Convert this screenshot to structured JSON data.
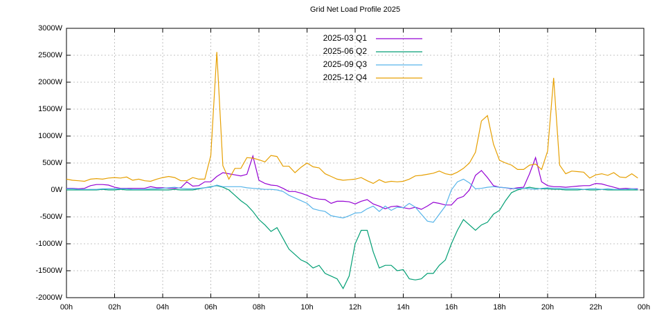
{
  "chart_data": {
    "type": "line",
    "title": "Grid Net Load Profile 2025",
    "x": [
      0,
      0.25,
      0.5,
      0.75,
      1,
      1.25,
      1.5,
      1.75,
      2,
      2.25,
      2.5,
      2.75,
      3,
      3.25,
      3.5,
      3.75,
      4,
      4.25,
      4.5,
      4.75,
      5,
      5.25,
      5.5,
      5.75,
      6,
      6.25,
      6.5,
      6.75,
      7,
      7.25,
      7.5,
      7.75,
      8,
      8.25,
      8.5,
      8.75,
      9,
      9.25,
      9.5,
      9.75,
      10,
      10.25,
      10.5,
      10.75,
      11,
      11.25,
      11.5,
      11.75,
      12,
      12.25,
      12.5,
      12.75,
      13,
      13.25,
      13.5,
      13.75,
      14,
      14.25,
      14.5,
      14.75,
      15,
      15.25,
      15.5,
      15.75,
      16,
      16.25,
      16.5,
      16.75,
      17,
      17.25,
      17.5,
      17.75,
      18,
      18.25,
      18.5,
      18.75,
      19,
      19.25,
      19.5,
      19.75,
      20,
      20.25,
      20.5,
      20.75,
      21,
      21.25,
      21.5,
      21.75,
      22,
      22.25,
      22.5,
      22.75,
      23,
      23.25,
      23.5,
      23.75
    ],
    "series": [
      {
        "name": "2025-03 Q1",
        "color": "#9400d3",
        "values": [
          30,
          30,
          20,
          30,
          80,
          100,
          100,
          90,
          50,
          30,
          30,
          30,
          30,
          30,
          60,
          40,
          40,
          30,
          30,
          40,
          150,
          70,
          80,
          150,
          150,
          250,
          320,
          300,
          280,
          260,
          290,
          630,
          180,
          120,
          90,
          80,
          30,
          -30,
          -30,
          -60,
          -100,
          -150,
          -170,
          -180,
          -250,
          -210,
          -210,
          -220,
          -260,
          -210,
          -180,
          -260,
          -300,
          -350,
          -310,
          -300,
          -330,
          -350,
          -320,
          -360,
          -300,
          -230,
          -250,
          -280,
          -280,
          -160,
          -120,
          0,
          270,
          360,
          230,
          80,
          50,
          40,
          20,
          40,
          50,
          300,
          600,
          150,
          80,
          60,
          60,
          50,
          60,
          70,
          80,
          80,
          120,
          110,
          80,
          50,
          20,
          30,
          20,
          20
        ]
      },
      {
        "name": "2025-06 Q2",
        "color": "#009e73",
        "values": [
          0,
          0,
          0,
          0,
          0,
          0,
          10,
          0,
          0,
          10,
          0,
          0,
          0,
          0,
          0,
          0,
          0,
          0,
          10,
          0,
          0,
          0,
          20,
          40,
          60,
          80,
          50,
          0,
          -100,
          -200,
          -280,
          -400,
          -550,
          -650,
          -770,
          -700,
          -900,
          -1100,
          -1200,
          -1300,
          -1350,
          -1450,
          -1400,
          -1550,
          -1600,
          -1650,
          -1830,
          -1600,
          -1000,
          -750,
          -750,
          -1150,
          -1450,
          -1400,
          -1400,
          -1500,
          -1480,
          -1650,
          -1670,
          -1650,
          -1550,
          -1550,
          -1400,
          -1300,
          -1000,
          -750,
          -550,
          -650,
          -750,
          -650,
          -600,
          -450,
          -380,
          -200,
          -50,
          0,
          30,
          50,
          30,
          20,
          20,
          10,
          10,
          0,
          0,
          0,
          10,
          0,
          0,
          10,
          0,
          0,
          0,
          0,
          0,
          0
        ]
      },
      {
        "name": "2025-09 Q3",
        "color": "#56b4e9",
        "values": [
          20,
          20,
          10,
          10,
          10,
          10,
          20,
          20,
          20,
          20,
          20,
          10,
          10,
          10,
          20,
          20,
          30,
          40,
          50,
          30,
          20,
          20,
          30,
          40,
          50,
          90,
          60,
          60,
          60,
          60,
          40,
          30,
          20,
          10,
          10,
          0,
          -30,
          -100,
          -150,
          -200,
          -250,
          -350,
          -380,
          -400,
          -480,
          -500,
          -520,
          -480,
          -430,
          -420,
          -350,
          -300,
          -400,
          -300,
          -380,
          -320,
          -330,
          -250,
          -320,
          -450,
          -580,
          -600,
          -450,
          -300,
          0,
          150,
          200,
          130,
          20,
          30,
          50,
          60,
          50,
          40,
          30,
          20,
          30,
          20,
          10,
          30,
          40,
          30,
          30,
          20,
          20,
          20,
          10,
          20,
          20,
          10,
          20,
          10,
          10,
          10,
          20,
          10
        ]
      },
      {
        "name": "2025-12 Q4",
        "color": "#e69f00",
        "values": [
          200,
          180,
          170,
          160,
          200,
          210,
          200,
          220,
          230,
          220,
          240,
          180,
          200,
          170,
          160,
          200,
          230,
          250,
          230,
          170,
          170,
          230,
          200,
          200,
          640,
          2560,
          450,
          200,
          400,
          400,
          600,
          590,
          560,
          520,
          640,
          620,
          440,
          440,
          320,
          420,
          500,
          430,
          410,
          300,
          250,
          200,
          180,
          190,
          200,
          230,
          170,
          120,
          190,
          140,
          160,
          150,
          160,
          200,
          260,
          270,
          290,
          310,
          350,
          300,
          280,
          330,
          400,
          500,
          700,
          1280,
          1380,
          850,
          550,
          500,
          460,
          380,
          380,
          460,
          480,
          380,
          720,
          2080,
          460,
          300,
          350,
          340,
          330,
          220,
          280,
          300,
          270,
          320,
          240,
          230,
          300,
          220
        ]
      }
    ],
    "xlim": [
      0,
      24
    ],
    "xticks": [
      {
        "value": 0,
        "label": "00h"
      },
      {
        "value": 2,
        "label": "02h"
      },
      {
        "value": 4,
        "label": "04h"
      },
      {
        "value": 6,
        "label": "06h"
      },
      {
        "value": 8,
        "label": "08h"
      },
      {
        "value": 10,
        "label": "10h"
      },
      {
        "value": 12,
        "label": "12h"
      },
      {
        "value": 14,
        "label": "14h"
      },
      {
        "value": 16,
        "label": "16h"
      },
      {
        "value": 18,
        "label": "18h"
      },
      {
        "value": 20,
        "label": "20h"
      },
      {
        "value": 22,
        "label": "22h"
      },
      {
        "value": 24,
        "label": "00h"
      }
    ],
    "ylim": [
      -2000,
      3000
    ],
    "yticks": [
      {
        "value": -2000,
        "label": "-2000W"
      },
      {
        "value": -1500,
        "label": "-1500W"
      },
      {
        "value": -1000,
        "label": "-1000W"
      },
      {
        "value": -500,
        "label": "-500W"
      },
      {
        "value": 0,
        "label": "0W"
      },
      {
        "value": 500,
        "label": "500W"
      },
      {
        "value": 1000,
        "label": "1000W"
      },
      {
        "value": 1500,
        "label": "1500W"
      },
      {
        "value": 2000,
        "label": "2000W"
      },
      {
        "value": 2500,
        "label": "2500W"
      },
      {
        "value": 3000,
        "label": "3000W"
      }
    ],
    "grid": true,
    "legend": "top"
  }
}
